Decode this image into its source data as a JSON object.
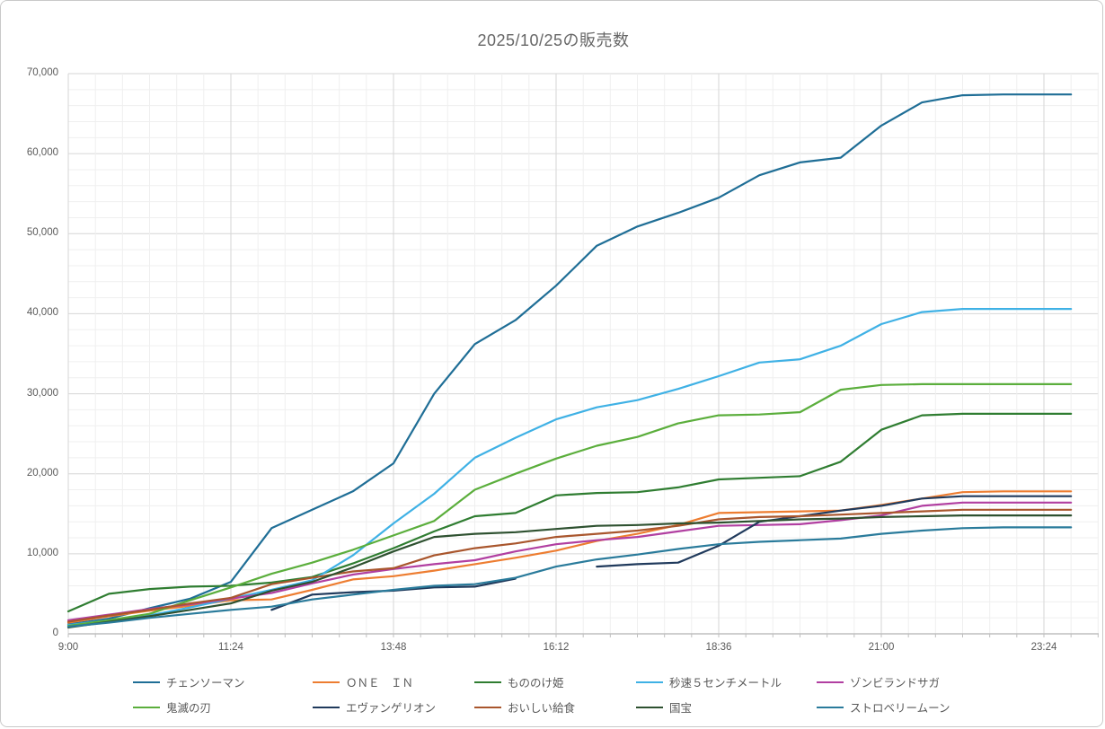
{
  "title": "2025/10/25の販売数",
  "axes": {
    "y": {
      "min": 0,
      "max": 70000,
      "major_step": 10000,
      "minor_step": 2000,
      "tick_labels": [
        "0",
        "10,000",
        "20,000",
        "30,000",
        "40,000",
        "50,000",
        "60,000",
        "70,000"
      ]
    },
    "x": {
      "tick_labels": [
        "9:00",
        "11:24",
        "13:48",
        "16:12",
        "18:36",
        "21:00",
        "23:24"
      ],
      "start": "9:00",
      "major_step_minutes": 144,
      "minor_step_minutes": 24
    }
  },
  "chart_data": {
    "type": "line",
    "title": "2025/10/25の販売数",
    "xlabel": "",
    "ylabel": "",
    "ylim": [
      0,
      70000
    ],
    "grid": "on",
    "legend_position": "bottom",
    "categories": [
      "9:00",
      "9:36",
      "10:12",
      "10:48",
      "11:24",
      "12:00",
      "12:36",
      "13:12",
      "13:48",
      "14:24",
      "15:00",
      "15:36",
      "16:12",
      "16:48",
      "17:24",
      "18:00",
      "18:36",
      "19:12",
      "19:48",
      "20:24",
      "21:00",
      "21:36",
      "22:12",
      "22:48",
      "23:24",
      "23:48"
    ],
    "series": [
      {
        "name": "チェンソーマン",
        "color": "#1f6e96",
        "values": [
          1200,
          1900,
          3200,
          4400,
          6500,
          13200,
          15500,
          17800,
          21300,
          30000,
          36200,
          39200,
          43500,
          48500,
          50900,
          52600,
          54500,
          57300,
          58900,
          59500,
          63500,
          66400,
          67300,
          67400,
          67400,
          67400
        ]
      },
      {
        "name": "ＯＮＥ　ＩＮ",
        "color": "#ed7d31",
        "values": [
          1400,
          2200,
          2900,
          3500,
          4200,
          4300,
          5500,
          6800,
          7200,
          7900,
          8700,
          9500,
          10400,
          11600,
          12500,
          13600,
          15100,
          15200,
          15300,
          15400,
          16100,
          16900,
          17700,
          17800,
          17800,
          17800
        ]
      },
      {
        "name": "もののけ姫",
        "color": "#2f7d31",
        "values": [
          2800,
          5000,
          5600,
          5900,
          6000,
          6400,
          7100,
          8800,
          10700,
          12800,
          14700,
          15100,
          17300,
          17600,
          17700,
          18300,
          19300,
          19500,
          19700,
          21500,
          25500,
          27300,
          27500,
          27500,
          27500,
          27500
        ]
      },
      {
        "name": "秒速５センチメートル",
        "color": "#3fb1e5",
        "values": [
          1100,
          1700,
          2300,
          3300,
          4400,
          5500,
          6700,
          9800,
          13800,
          17500,
          22000,
          24500,
          26800,
          28300,
          29200,
          30600,
          32200,
          33900,
          34300,
          36000,
          38700,
          40200,
          40600,
          40600,
          40600,
          40600
        ]
      },
      {
        "name": "ゾンビランドサガ",
        "color": "#b13fa1",
        "values": [
          1700,
          2400,
          3100,
          3700,
          4400,
          5100,
          6300,
          7400,
          8100,
          8700,
          9200,
          10300,
          11200,
          11700,
          12100,
          12800,
          13500,
          13600,
          13700,
          14200,
          14800,
          16000,
          16400,
          16400,
          16400,
          16400
        ]
      },
      {
        "name": "鬼滅の刃",
        "color": "#5bae3c",
        "values": [
          1000,
          1700,
          2500,
          4200,
          5800,
          7500,
          8900,
          10500,
          12300,
          14100,
          18000,
          20000,
          21900,
          23500,
          24600,
          26300,
          27300,
          27400,
          27700,
          30500,
          31100,
          31200,
          31200,
          31200,
          31200,
          31200
        ]
      },
      {
        "name": "エヴァンゲリオン",
        "color": "#203a5c",
        "values": [
          null,
          null,
          null,
          null,
          null,
          3000,
          4900,
          5200,
          5400,
          5800,
          5900,
          6900,
          null,
          8400,
          8700,
          8900,
          11000,
          14000,
          14700,
          15400,
          16000,
          16900,
          17200,
          17200,
          17200,
          17200
        ]
      },
      {
        "name": "おいしい給食",
        "color": "#a9562d",
        "values": [
          1500,
          2300,
          3000,
          3800,
          4500,
          6200,
          7000,
          7800,
          8200,
          9800,
          10700,
          11300,
          12100,
          12500,
          12900,
          13500,
          14300,
          14600,
          14700,
          14900,
          15100,
          15300,
          15500,
          15500,
          15500,
          15500
        ]
      },
      {
        "name": "国宝",
        "color": "#2e5130",
        "values": [
          800,
          1500,
          2200,
          3000,
          3800,
          5400,
          6500,
          8300,
          10300,
          12100,
          12500,
          12700,
          13100,
          13500,
          13600,
          13800,
          13900,
          14100,
          14300,
          14400,
          14600,
          14700,
          14800,
          14800,
          14800,
          14800
        ]
      },
      {
        "name": "ストロベリームーン",
        "color": "#2a7b9b",
        "values": [
          900,
          1400,
          2000,
          2500,
          3000,
          3400,
          4300,
          4900,
          5500,
          6000,
          6200,
          7000,
          8400,
          9300,
          9900,
          10600,
          11200,
          11500,
          11700,
          11900,
          12500,
          12900,
          13200,
          13300,
          13300,
          13300
        ]
      }
    ]
  },
  "colors": {
    "grid_major": "#d6d6d6",
    "grid_minor": "#efefef",
    "axis_line": "#bfbfbf",
    "label_text": "#595959",
    "title_text": "#666666"
  }
}
